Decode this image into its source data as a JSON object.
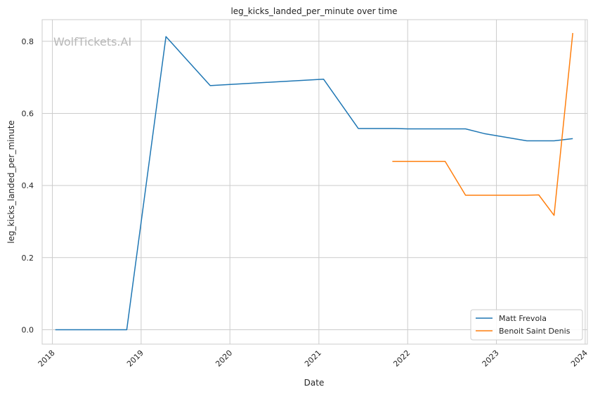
{
  "chart_data": {
    "type": "line",
    "title": "leg_kicks_landed_per_minute over time",
    "xlabel": "Date",
    "ylabel": "leg_kicks_landed_per_minute",
    "watermark": "WolfTickets.AI",
    "xlim": [
      "2017-11-20",
      "2024-01-10"
    ],
    "ylim": [
      -0.04,
      0.86
    ],
    "x_ticks": [
      "2018",
      "2019",
      "2020",
      "2021",
      "2022",
      "2023",
      "2024"
    ],
    "y_ticks": [
      "0.0",
      "0.2",
      "0.4",
      "0.6",
      "0.8"
    ],
    "grid": true,
    "legend_position": "bottom-right",
    "series": [
      {
        "name": "Matt Frevola",
        "color": "#1f77b4",
        "points": [
          [
            "2018-01-13",
            0.0
          ],
          [
            "2018-11-03",
            0.0
          ],
          [
            "2019-04-13",
            0.813
          ],
          [
            "2019-10-12",
            0.677
          ],
          [
            "2021-01-20",
            0.695
          ],
          [
            "2021-06-12",
            0.558
          ],
          [
            "2021-11-13",
            0.558
          ],
          [
            "2022-01-01",
            0.557
          ],
          [
            "2022-08-27",
            0.557
          ],
          [
            "2022-11-12",
            0.544
          ],
          [
            "2023-05-06",
            0.524
          ],
          [
            "2023-08-26",
            0.524
          ],
          [
            "2023-11-11",
            0.53
          ]
        ]
      },
      {
        "name": "Benoit Saint Denis",
        "color": "#ff7f0e",
        "points": [
          [
            "2021-10-30",
            0.467
          ],
          [
            "2022-06-04",
            0.467
          ],
          [
            "2022-08-27",
            0.373
          ],
          [
            "2023-05-06",
            0.373
          ],
          [
            "2023-06-24",
            0.374
          ],
          [
            "2023-08-26",
            0.317
          ],
          [
            "2023-11-11",
            0.823
          ]
        ]
      }
    ]
  }
}
